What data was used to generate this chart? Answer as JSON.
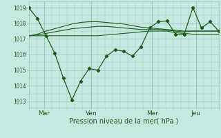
{
  "background_color": "#c5e8e0",
  "grid_color": "#9dc8bc",
  "line_color": "#1a5c1a",
  "xtick_labels": [
    "Mar",
    "Ven",
    "Mer",
    "Jeu"
  ],
  "xtick_positions": [
    0.08,
    0.33,
    0.65,
    0.88
  ],
  "ytick_labels": [
    "1013",
    "1014",
    "1015",
    "1016",
    "1017",
    "1018",
    "1019"
  ],
  "ytick_values": [
    1013,
    1014,
    1015,
    1016,
    1017,
    1018,
    1019
  ],
  "ylim": [
    1012.6,
    1019.4
  ],
  "xlim": [
    0.0,
    1.0
  ],
  "xlabel": "Pression niveau de la mer( hPa )",
  "series_main": [
    1019.0,
    1018.3,
    1017.2,
    1016.1,
    1014.5,
    1013.1,
    1014.3,
    1015.1,
    1015.0,
    1015.9,
    1016.3,
    1016.2,
    1015.9,
    1016.5,
    1017.7,
    1018.1,
    1018.15,
    1017.3,
    1017.3,
    1019.0,
    1017.7,
    1018.1,
    1017.5
  ],
  "series_flat1": [
    1017.2,
    1017.2,
    1017.2,
    1017.2,
    1017.2,
    1017.2,
    1017.2,
    1017.2,
    1017.2,
    1017.25,
    1017.3,
    1017.35,
    1017.4,
    1017.45,
    1017.5,
    1017.5,
    1017.5,
    1017.4,
    1017.35,
    1017.3,
    1017.3,
    1017.3,
    1017.3
  ],
  "series_flat2": [
    1017.2,
    1017.25,
    1017.35,
    1017.45,
    1017.55,
    1017.65,
    1017.7,
    1017.75,
    1017.8,
    1017.8,
    1017.75,
    1017.7,
    1017.65,
    1017.6,
    1017.6,
    1017.6,
    1017.55,
    1017.5,
    1017.45,
    1017.5,
    1017.5,
    1017.5,
    1017.5
  ],
  "series_flat3": [
    1017.2,
    1017.3,
    1017.5,
    1017.65,
    1017.8,
    1017.95,
    1018.05,
    1018.1,
    1018.1,
    1018.05,
    1018.0,
    1017.95,
    1017.85,
    1017.75,
    1017.7,
    1017.65,
    1017.6,
    1017.55,
    1017.5,
    1017.5,
    1017.5,
    1017.5,
    1017.5
  ],
  "n_main": 23,
  "n_flat": 23
}
